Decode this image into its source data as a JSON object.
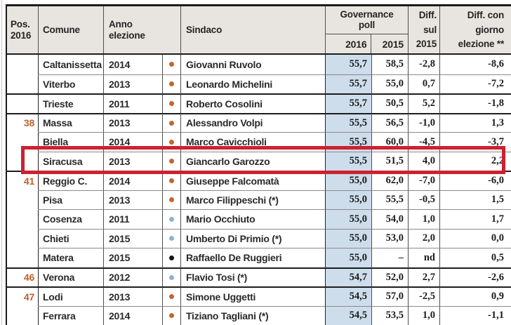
{
  "header": {
    "pos": [
      "Pos.",
      "2016"
    ],
    "comune": "Comune",
    "anno": [
      "Anno",
      "elezione"
    ],
    "sindaco": "Sindaco",
    "governance": [
      "Governance",
      "poll"
    ],
    "col_2016": "2016",
    "col_2015": "2015",
    "diff_sul": [
      "Diff.",
      "sul",
      "2015"
    ],
    "diff_giorno": [
      "Diff. con",
      "giorno",
      "elezione **"
    ]
  },
  "rows": [
    {
      "pos": "",
      "comune": "Caltanissetta",
      "anno": "2014",
      "dot": "orange",
      "sindaco": "Giovanni Ruvolo",
      "g2016": "55,7",
      "g2015": "58,5",
      "diff": "-2,8",
      "diff_giorno": "-8,6",
      "group_start": false
    },
    {
      "pos": "",
      "comune": "Viterbo",
      "anno": "2013",
      "dot": "orange",
      "sindaco": "Leonardo Michelini",
      "g2016": "55,7",
      "g2015": "55,0",
      "diff": "0,7",
      "diff_giorno": "-7,2",
      "group_start": false
    },
    {
      "pos": "",
      "comune": "Trieste",
      "anno": "2011",
      "dot": "orange",
      "sindaco": "Roberto Cosolini",
      "g2016": "55,7",
      "g2015": "50,5",
      "diff": "5,2",
      "diff_giorno": "-1,8",
      "group_start": true
    },
    {
      "pos": "38",
      "comune": "Massa",
      "anno": "2013",
      "dot": "orange",
      "sindaco": "Alessandro Volpi",
      "g2016": "55,5",
      "g2015": "56,5",
      "diff": "-1,0",
      "diff_giorno": "1,3",
      "group_start": true
    },
    {
      "pos": "",
      "comune": "Biella",
      "anno": "2014",
      "dot": "orange",
      "sindaco": "Marco Cavicchioli",
      "g2016": "55,5",
      "g2015": "60,0",
      "diff": "-4,5",
      "diff_giorno": "-3,7",
      "group_start": false
    },
    {
      "pos": "",
      "comune": "Siracusa",
      "anno": "2013",
      "dot": "orange",
      "sindaco": "Giancarlo Garozzo",
      "g2016": "55,5",
      "g2015": "51,5",
      "diff": "4,0",
      "diff_giorno": "2,2",
      "group_start": false
    },
    {
      "pos": "41",
      "comune": "Reggio C.",
      "anno": "2014",
      "dot": "orange",
      "sindaco": "Giuseppe Falcomatà",
      "g2016": "55,0",
      "g2015": "62,0",
      "diff": "-7,0",
      "diff_giorno": "-6,0",
      "group_start": true
    },
    {
      "pos": "",
      "comune": "Pisa",
      "anno": "2013",
      "dot": "orange",
      "sindaco": "Marco Filippeschi (*)",
      "g2016": "55,0",
      "g2015": "55,5",
      "diff": "-0,5",
      "diff_giorno": "1,5",
      "group_start": false
    },
    {
      "pos": "",
      "comune": "Cosenza",
      "anno": "2011",
      "dot": "light_blue",
      "sindaco": "Mario Occhiuto",
      "g2016": "55,0",
      "g2015": "54,0",
      "diff": "1,0",
      "diff_giorno": "1,7",
      "group_start": false
    },
    {
      "pos": "",
      "comune": "Chieti",
      "anno": "2015",
      "dot": "light_blue",
      "sindaco": "Umberto Di Primio (*)",
      "g2016": "55,0",
      "g2015": "53,0",
      "diff": "2,0",
      "diff_giorno": "0,0",
      "group_start": false
    },
    {
      "pos": "",
      "comune": "Matera",
      "anno": "2015",
      "dot": "black",
      "sindaco": "Raffaello De Ruggieri",
      "g2016": "55,0",
      "g2015": "–",
      "diff": "nd",
      "diff_giorno": "0,5",
      "group_start": false
    },
    {
      "pos": "46",
      "comune": "Verona",
      "anno": "2012",
      "dot": "light_blue",
      "sindaco": "Flavio Tosi (*)",
      "g2016": "54,7",
      "g2015": "52,0",
      "diff": "2,7",
      "diff_giorno": "-2,6",
      "group_start": true
    },
    {
      "pos": "47",
      "comune": "Lodi",
      "anno": "2013",
      "dot": "orange",
      "sindaco": "Simone Uggetti",
      "g2016": "54,5",
      "g2015": "57,0",
      "diff": "-2,5",
      "diff_giorno": "0,9",
      "group_start": true
    },
    {
      "pos": "",
      "comune": "Ferrara",
      "anno": "2014",
      "dot": "orange",
      "sindaco": "Tiziano Tagliani (*)",
      "g2016": "54,5",
      "g2015": "53,5",
      "diff": "1,0",
      "diff_giorno": "-1,1",
      "group_start": false
    }
  ],
  "highlight": {
    "row_index": 5
  },
  "colors": {
    "header_bg": "#e8e5e0",
    "col2016_bg": "#cdddeb",
    "pos_number": "#bf6030",
    "highlight_red": "#cd2130",
    "dots": {
      "orange": "#c2662f",
      "light_blue": "#8fb2cf",
      "black": "#161616"
    }
  }
}
